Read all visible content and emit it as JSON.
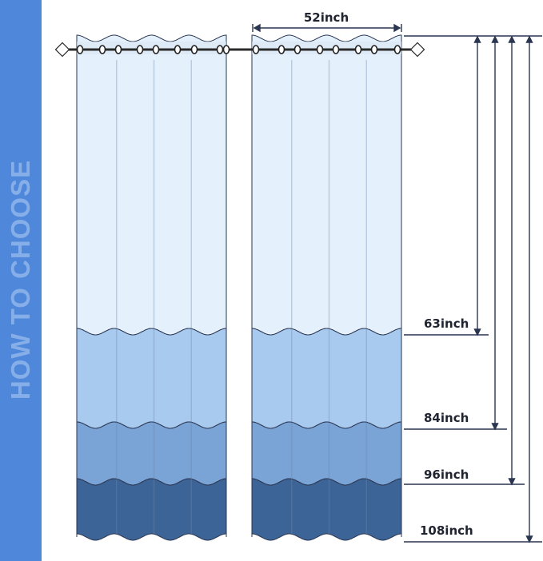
{
  "side_title": "HOW TO CHOOSE",
  "width_label": "52inch",
  "lengths": [
    "63inch",
    "84inch",
    "96inch",
    "108inch"
  ],
  "colors": {
    "side_bar": "#4f88da",
    "band_63": "#e4f1fd",
    "band_84": "#a9caef",
    "band_96": "#7aa3d6",
    "band_108": "#3d6496",
    "outline": "#2a3550"
  }
}
